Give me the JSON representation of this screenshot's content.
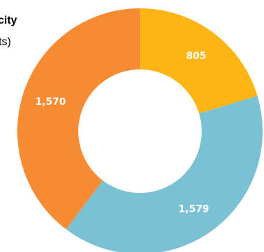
{
  "chart_data": {
    "type": "pie",
    "donut": true,
    "title_lines": [
      "city",
      "ts)"
    ],
    "slices": [
      {
        "label": "805",
        "value": 805,
        "color": "#FDB515"
      },
      {
        "label": "1,579",
        "value": 1579,
        "color": "#7BC1D4"
      },
      {
        "label": "1,570",
        "value": 1570,
        "color": "#F68B33"
      }
    ]
  }
}
